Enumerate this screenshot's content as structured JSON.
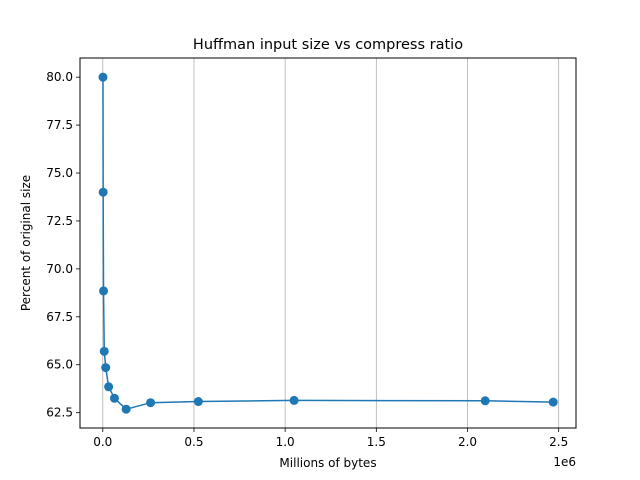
{
  "chart_data": {
    "type": "line",
    "title": "Huffman input size vs compress ratio",
    "xlabel": "Millions of bytes",
    "ylabel": "Percent of original size",
    "x_offset_label": "1e6",
    "xlim": [
      -0.125,
      2.595
    ],
    "ylim": [
      61.7,
      81.0
    ],
    "x_ticks": [
      0.0,
      0.5,
      1.0,
      1.5,
      2.0,
      2.5
    ],
    "x_tick_labels": [
      "0.0",
      "0.5",
      "1.0",
      "1.5",
      "2.0",
      "2.5"
    ],
    "y_ticks": [
      62.5,
      65.0,
      67.5,
      70.0,
      72.5,
      75.0,
      77.5,
      80.0
    ],
    "y_tick_labels": [
      "62.5",
      "65.0",
      "67.5",
      "70.0",
      "72.5",
      "75.0",
      "77.5",
      "80.0"
    ],
    "grid": "x-major",
    "series": [
      {
        "color": "#1f77b4",
        "marker": "circle",
        "x": [
          0.001,
          0.002,
          0.004,
          0.008,
          0.016,
          0.032,
          0.064,
          0.128,
          0.262,
          0.524,
          1.049,
          2.097,
          2.47
        ],
        "y": [
          80.0,
          74.0,
          68.85,
          65.7,
          64.85,
          63.85,
          63.25,
          62.68,
          63.02,
          63.08,
          63.14,
          63.12,
          63.05
        ]
      }
    ]
  }
}
